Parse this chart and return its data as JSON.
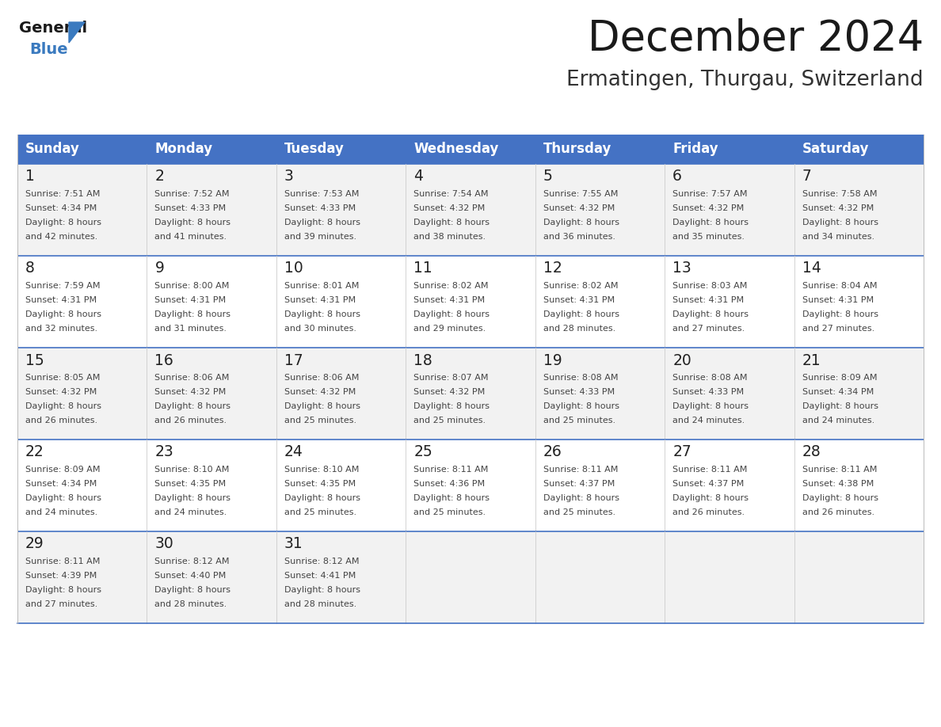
{
  "title": "December 2024",
  "subtitle": "Ermatingen, Thurgau, Switzerland",
  "header_bg": "#4472C4",
  "header_text": "#FFFFFF",
  "header_font_size": 12,
  "day_names": [
    "Sunday",
    "Monday",
    "Tuesday",
    "Wednesday",
    "Thursday",
    "Friday",
    "Saturday"
  ],
  "cell_bg_odd": "#F2F2F2",
  "cell_bg_even": "#FFFFFF",
  "cell_text_color": "#444444",
  "day_num_color": "#222222",
  "title_color": "#1a1a1a",
  "subtitle_color": "#333333",
  "title_fontsize": 38,
  "subtitle_fontsize": 19,
  "logo_general_color": "#1a1a1a",
  "logo_blue_color": "#3a7abf",
  "weeks": [
    [
      {
        "day": 1,
        "sunrise": "7:51 AM",
        "sunset": "4:34 PM",
        "daylight": "8 hours\nand 42 minutes."
      },
      {
        "day": 2,
        "sunrise": "7:52 AM",
        "sunset": "4:33 PM",
        "daylight": "8 hours\nand 41 minutes."
      },
      {
        "day": 3,
        "sunrise": "7:53 AM",
        "sunset": "4:33 PM",
        "daylight": "8 hours\nand 39 minutes."
      },
      {
        "day": 4,
        "sunrise": "7:54 AM",
        "sunset": "4:32 PM",
        "daylight": "8 hours\nand 38 minutes."
      },
      {
        "day": 5,
        "sunrise": "7:55 AM",
        "sunset": "4:32 PM",
        "daylight": "8 hours\nand 36 minutes."
      },
      {
        "day": 6,
        "sunrise": "7:57 AM",
        "sunset": "4:32 PM",
        "daylight": "8 hours\nand 35 minutes."
      },
      {
        "day": 7,
        "sunrise": "7:58 AM",
        "sunset": "4:32 PM",
        "daylight": "8 hours\nand 34 minutes."
      }
    ],
    [
      {
        "day": 8,
        "sunrise": "7:59 AM",
        "sunset": "4:31 PM",
        "daylight": "8 hours\nand 32 minutes."
      },
      {
        "day": 9,
        "sunrise": "8:00 AM",
        "sunset": "4:31 PM",
        "daylight": "8 hours\nand 31 minutes."
      },
      {
        "day": 10,
        "sunrise": "8:01 AM",
        "sunset": "4:31 PM",
        "daylight": "8 hours\nand 30 minutes."
      },
      {
        "day": 11,
        "sunrise": "8:02 AM",
        "sunset": "4:31 PM",
        "daylight": "8 hours\nand 29 minutes."
      },
      {
        "day": 12,
        "sunrise": "8:02 AM",
        "sunset": "4:31 PM",
        "daylight": "8 hours\nand 28 minutes."
      },
      {
        "day": 13,
        "sunrise": "8:03 AM",
        "sunset": "4:31 PM",
        "daylight": "8 hours\nand 27 minutes."
      },
      {
        "day": 14,
        "sunrise": "8:04 AM",
        "sunset": "4:31 PM",
        "daylight": "8 hours\nand 27 minutes."
      }
    ],
    [
      {
        "day": 15,
        "sunrise": "8:05 AM",
        "sunset": "4:32 PM",
        "daylight": "8 hours\nand 26 minutes."
      },
      {
        "day": 16,
        "sunrise": "8:06 AM",
        "sunset": "4:32 PM",
        "daylight": "8 hours\nand 26 minutes."
      },
      {
        "day": 17,
        "sunrise": "8:06 AM",
        "sunset": "4:32 PM",
        "daylight": "8 hours\nand 25 minutes."
      },
      {
        "day": 18,
        "sunrise": "8:07 AM",
        "sunset": "4:32 PM",
        "daylight": "8 hours\nand 25 minutes."
      },
      {
        "day": 19,
        "sunrise": "8:08 AM",
        "sunset": "4:33 PM",
        "daylight": "8 hours\nand 25 minutes."
      },
      {
        "day": 20,
        "sunrise": "8:08 AM",
        "sunset": "4:33 PM",
        "daylight": "8 hours\nand 24 minutes."
      },
      {
        "day": 21,
        "sunrise": "8:09 AM",
        "sunset": "4:34 PM",
        "daylight": "8 hours\nand 24 minutes."
      }
    ],
    [
      {
        "day": 22,
        "sunrise": "8:09 AM",
        "sunset": "4:34 PM",
        "daylight": "8 hours\nand 24 minutes."
      },
      {
        "day": 23,
        "sunrise": "8:10 AM",
        "sunset": "4:35 PM",
        "daylight": "8 hours\nand 24 minutes."
      },
      {
        "day": 24,
        "sunrise": "8:10 AM",
        "sunset": "4:35 PM",
        "daylight": "8 hours\nand 25 minutes."
      },
      {
        "day": 25,
        "sunrise": "8:11 AM",
        "sunset": "4:36 PM",
        "daylight": "8 hours\nand 25 minutes."
      },
      {
        "day": 26,
        "sunrise": "8:11 AM",
        "sunset": "4:37 PM",
        "daylight": "8 hours\nand 25 minutes."
      },
      {
        "day": 27,
        "sunrise": "8:11 AM",
        "sunset": "4:37 PM",
        "daylight": "8 hours\nand 26 minutes."
      },
      {
        "day": 28,
        "sunrise": "8:11 AM",
        "sunset": "4:38 PM",
        "daylight": "8 hours\nand 26 minutes."
      }
    ],
    [
      {
        "day": 29,
        "sunrise": "8:11 AM",
        "sunset": "4:39 PM",
        "daylight": "8 hours\nand 27 minutes."
      },
      {
        "day": 30,
        "sunrise": "8:12 AM",
        "sunset": "4:40 PM",
        "daylight": "8 hours\nand 28 minutes."
      },
      {
        "day": 31,
        "sunrise": "8:12 AM",
        "sunset": "4:41 PM",
        "daylight": "8 hours\nand 28 minutes."
      },
      null,
      null,
      null,
      null
    ]
  ]
}
